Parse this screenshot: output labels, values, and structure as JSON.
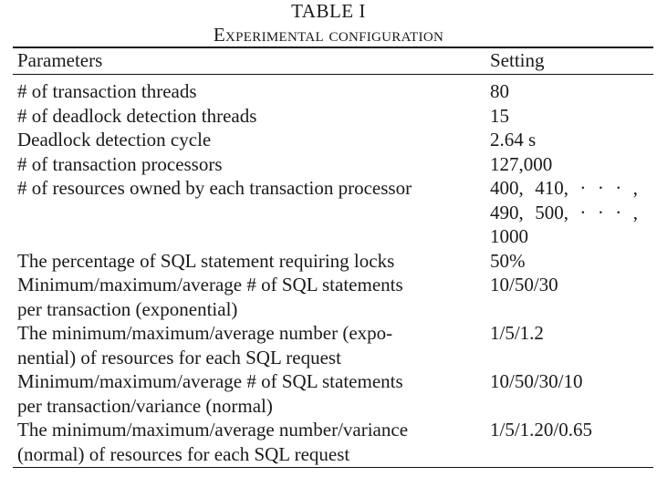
{
  "caption": {
    "label": "TABLE I",
    "title": "Experimental configuration"
  },
  "header": {
    "param": "Parameters",
    "setting": "Setting"
  },
  "rows": [
    {
      "param": "# of transaction threads",
      "setting": "80"
    },
    {
      "param": "# of deadlock detection threads",
      "setting": "15"
    },
    {
      "param": "Deadlock detection cycle",
      "setting": "2.64 s"
    },
    {
      "param": "# of transaction processors",
      "setting": "127,000"
    },
    {
      "param": "# of resources owned by each transaction processor",
      "setting_lines": [
        "400,   410,   · · · ,",
        "490,   500,   · · · ,",
        "1000"
      ]
    },
    {
      "param": "The percentage of SQL statement requiring locks",
      "setting": "50%"
    },
    {
      "param_lines": [
        "Minimum/maximum/average # of SQL statements",
        "per transaction (exponential)"
      ],
      "setting": "10/50/30"
    },
    {
      "param_lines": [
        "The minimum/maximum/average number (expo-",
        "nential) of resources for each SQL request"
      ],
      "setting": "1/5/1.2"
    },
    {
      "param_lines": [
        "Minimum/maximum/average # of SQL statements",
        "per transaction/variance (normal)"
      ],
      "setting": "10/50/30/10"
    },
    {
      "param_lines": [
        "The minimum/maximum/average number/variance",
        "(normal) of resources for each SQL request"
      ],
      "setting": "1/5/1.20/0.65"
    }
  ]
}
